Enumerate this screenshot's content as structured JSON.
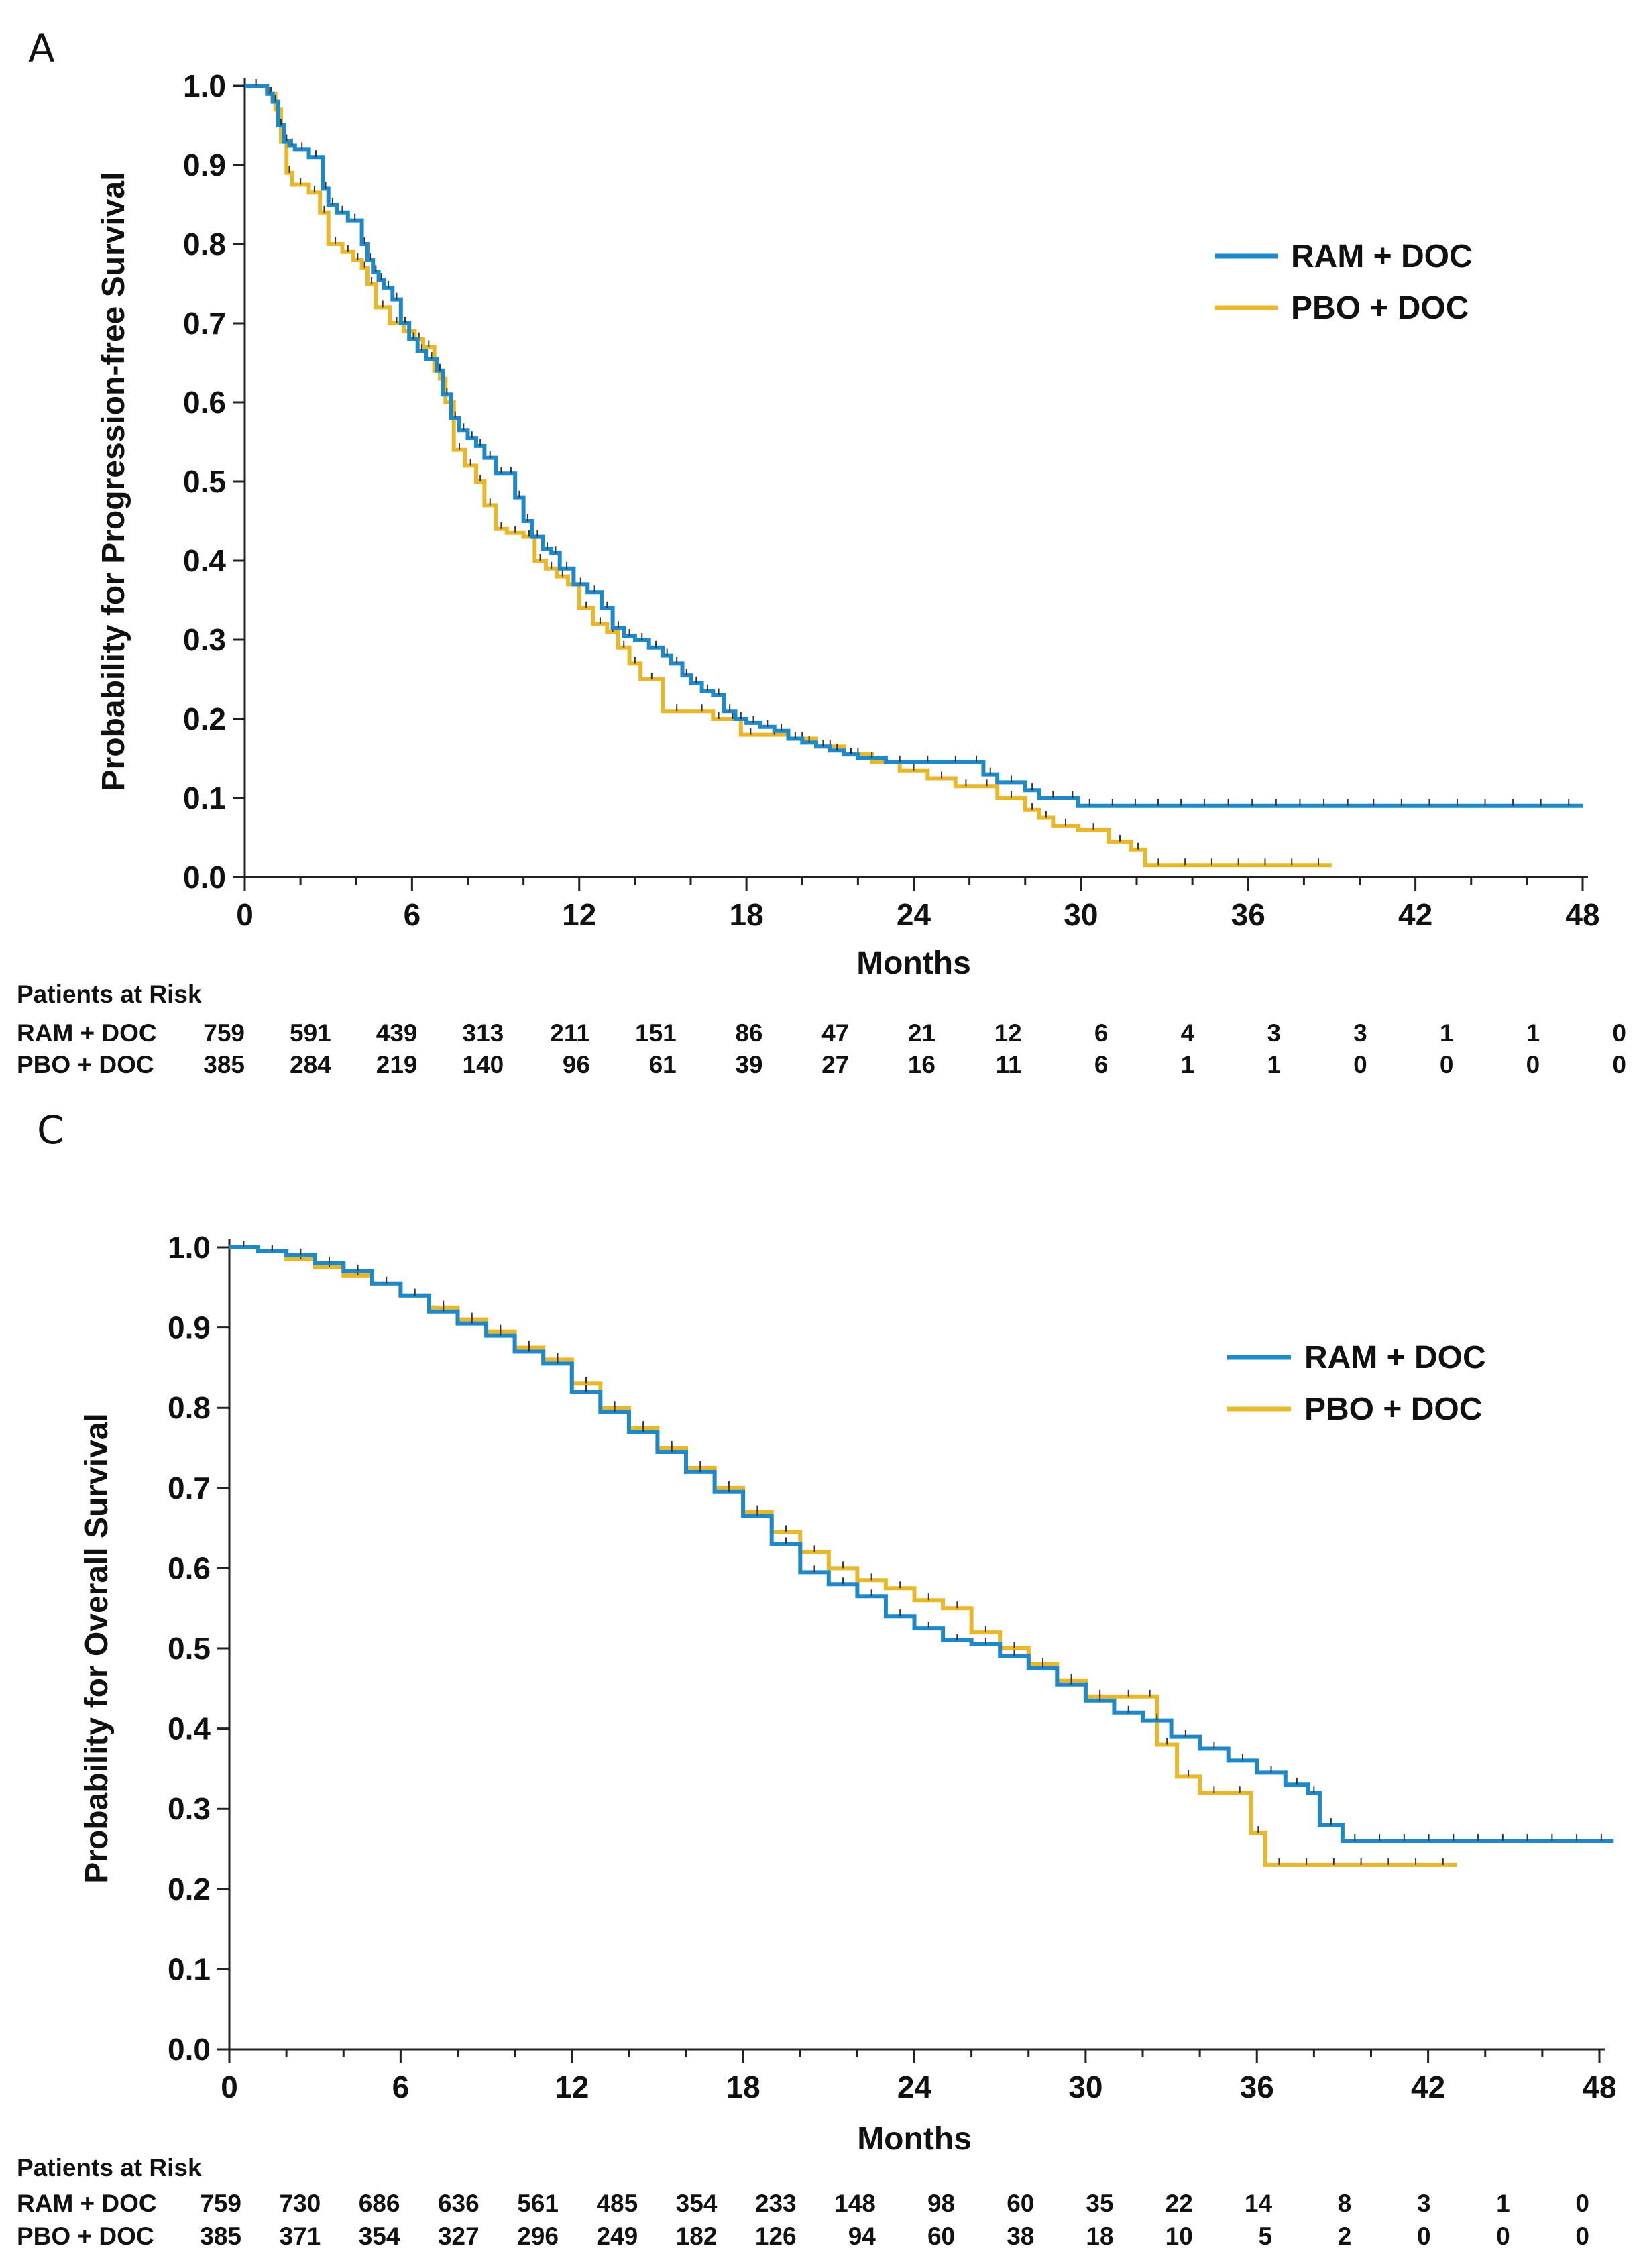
{
  "colors": {
    "ram": "#1e88c8",
    "pbo": "#e8b82a"
  },
  "chart_data": [
    {
      "panel": "A",
      "type": "line",
      "title": "",
      "xlabel": "Months",
      "ylabel": "Probability for Progression-free Survival",
      "xlim": [
        0,
        48
      ],
      "ylim": [
        0,
        1.0
      ],
      "xticks": [
        "0",
        "6",
        "12",
        "18",
        "24",
        "30",
        "36",
        "42",
        "48"
      ],
      "yticks": [
        "0.0",
        "0.1",
        "0.2",
        "0.3",
        "0.4",
        "0.5",
        "0.6",
        "0.7",
        "0.8",
        "0.9",
        "1.0"
      ],
      "legend": [
        "RAM + DOC",
        "PBO + DOC"
      ],
      "series": [
        {
          "name": "RAM + DOC",
          "color": "ram",
          "x": [
            0,
            0.8,
            1.0,
            1.2,
            1.4,
            1.6,
            1.8,
            2.3,
            2.8,
            3.0,
            3.3,
            3.7,
            4.2,
            4.4,
            4.6,
            4.8,
            5.0,
            5.3,
            5.6,
            5.9,
            6.2,
            6.5,
            6.9,
            7.1,
            7.4,
            7.7,
            8.0,
            8.3,
            8.6,
            9.0,
            9.4,
            9.7,
            10.0,
            10.3,
            10.7,
            11.0,
            11.3,
            11.8,
            12.3,
            12.8,
            13.2,
            13.6,
            14.0,
            14.5,
            15.0,
            15.3,
            15.7,
            16.0,
            16.4,
            16.8,
            17.2,
            17.6,
            18.0,
            18.5,
            19.0,
            19.5,
            20.0,
            20.5,
            21.0,
            21.5,
            22.0,
            23.0,
            24.0,
            25.0,
            26.0,
            26.5,
            27.0,
            28.0,
            28.5,
            29.5,
            29.9,
            34.0,
            40.0,
            44.0,
            48.0
          ],
          "y": [
            1.0,
            0.99,
            0.98,
            0.95,
            0.93,
            0.925,
            0.92,
            0.91,
            0.87,
            0.85,
            0.84,
            0.83,
            0.8,
            0.78,
            0.765,
            0.755,
            0.745,
            0.73,
            0.7,
            0.68,
            0.665,
            0.655,
            0.64,
            0.61,
            0.58,
            0.565,
            0.555,
            0.545,
            0.53,
            0.51,
            0.51,
            0.48,
            0.45,
            0.43,
            0.415,
            0.41,
            0.39,
            0.37,
            0.36,
            0.34,
            0.315,
            0.305,
            0.3,
            0.29,
            0.28,
            0.27,
            0.255,
            0.245,
            0.235,
            0.23,
            0.21,
            0.2,
            0.195,
            0.19,
            0.185,
            0.175,
            0.17,
            0.165,
            0.16,
            0.155,
            0.15,
            0.145,
            0.145,
            0.145,
            0.145,
            0.13,
            0.12,
            0.11,
            0.1,
            0.1,
            0.09,
            0.09,
            0.09,
            0.09,
            0.09
          ]
        },
        {
          "name": "PBO + DOC",
          "color": "pbo",
          "x": [
            0,
            0.8,
            1.1,
            1.3,
            1.5,
            1.7,
            2.3,
            2.7,
            3.0,
            3.5,
            3.9,
            4.2,
            4.4,
            4.7,
            5.2,
            5.7,
            6.1,
            6.4,
            6.8,
            7.0,
            7.2,
            7.5,
            7.9,
            8.3,
            8.6,
            9.0,
            9.4,
            10.0,
            10.4,
            10.8,
            11.2,
            11.6,
            12.0,
            12.5,
            13.0,
            13.4,
            13.8,
            14.2,
            15.0,
            16.0,
            16.8,
            17.2,
            17.8,
            18.5,
            19.5,
            20.5,
            21.5,
            22.5,
            23.5,
            24.5,
            25.5,
            27.0,
            28.0,
            28.5,
            29.0,
            29.9,
            31.0,
            31.8,
            32.3,
            39.0
          ],
          "y": [
            1.0,
            0.99,
            0.97,
            0.93,
            0.89,
            0.875,
            0.865,
            0.84,
            0.8,
            0.79,
            0.78,
            0.77,
            0.75,
            0.72,
            0.7,
            0.69,
            0.68,
            0.67,
            0.64,
            0.63,
            0.6,
            0.54,
            0.52,
            0.5,
            0.47,
            0.44,
            0.435,
            0.43,
            0.4,
            0.39,
            0.38,
            0.37,
            0.34,
            0.32,
            0.31,
            0.29,
            0.27,
            0.25,
            0.21,
            0.21,
            0.2,
            0.2,
            0.18,
            0.18,
            0.175,
            0.165,
            0.155,
            0.145,
            0.135,
            0.125,
            0.115,
            0.1,
            0.085,
            0.075,
            0.065,
            0.06,
            0.045,
            0.035,
            0.015,
            0.015
          ]
        }
      ],
      "risk_table": {
        "title": "Patients at Risk",
        "rows": [
          {
            "label": "RAM + DOC",
            "values": [
              "759",
              "591",
              "439",
              "313",
              "211",
              "151",
              "86",
              "47",
              "21",
              "12",
              "6",
              "4",
              "3",
              "3",
              "1",
              "1",
              "0"
            ]
          },
          {
            "label": "PBO + DOC",
            "values": [
              "385",
              "284",
              "219",
              "140",
              "96",
              "61",
              "39",
              "27",
              "16",
              "11",
              "6",
              "1",
              "1",
              "0",
              "0",
              "0",
              "0"
            ]
          }
        ]
      }
    },
    {
      "panel": "C",
      "type": "line",
      "title": "",
      "xlabel": "Months",
      "ylabel": "Probability for Overall Survival",
      "xlim": [
        0,
        48
      ],
      "ylim": [
        0,
        1.0
      ],
      "xticks": [
        "0",
        "6",
        "12",
        "18",
        "24",
        "30",
        "36",
        "42",
        "48"
      ],
      "yticks": [
        "0.0",
        "0.1",
        "0.2",
        "0.3",
        "0.4",
        "0.5",
        "0.6",
        "0.7",
        "0.8",
        "0.9",
        "1.0"
      ],
      "legend": [
        "RAM + DOC",
        "PBO + DOC"
      ],
      "series": [
        {
          "name": "RAM + DOC",
          "color": "ram",
          "x": [
            0,
            1,
            2,
            3,
            4,
            5,
            6,
            7,
            8,
            9,
            10,
            11,
            12,
            13,
            14,
            15,
            16,
            17,
            18,
            19,
            20,
            21,
            22,
            23,
            24,
            25,
            26,
            27,
            28,
            29,
            30,
            31,
            32,
            33,
            34,
            35,
            36,
            37,
            37.8,
            38.2,
            39.0,
            48.5
          ],
          "y": [
            1.0,
            0.995,
            0.99,
            0.98,
            0.97,
            0.955,
            0.94,
            0.92,
            0.905,
            0.89,
            0.87,
            0.855,
            0.82,
            0.795,
            0.77,
            0.745,
            0.72,
            0.695,
            0.665,
            0.63,
            0.595,
            0.58,
            0.565,
            0.54,
            0.525,
            0.51,
            0.505,
            0.49,
            0.475,
            0.455,
            0.435,
            0.42,
            0.41,
            0.39,
            0.375,
            0.36,
            0.345,
            0.33,
            0.32,
            0.28,
            0.26,
            0.26
          ]
        },
        {
          "name": "PBO + DOC",
          "color": "pbo",
          "x": [
            0,
            1,
            2,
            3,
            4,
            5,
            6,
            7,
            8,
            9,
            10,
            11,
            12,
            13,
            14,
            15,
            16,
            17,
            18,
            19,
            20,
            21,
            22,
            23,
            24,
            25,
            26,
            27,
            28,
            29,
            30,
            31,
            32,
            32.5,
            33.2,
            34.0,
            35.0,
            35.8,
            36.3,
            43.0
          ],
          "y": [
            1.0,
            0.995,
            0.985,
            0.975,
            0.965,
            0.955,
            0.94,
            0.925,
            0.91,
            0.895,
            0.875,
            0.86,
            0.83,
            0.8,
            0.775,
            0.75,
            0.725,
            0.7,
            0.67,
            0.645,
            0.62,
            0.6,
            0.585,
            0.575,
            0.56,
            0.55,
            0.52,
            0.5,
            0.48,
            0.46,
            0.44,
            0.44,
            0.44,
            0.38,
            0.34,
            0.32,
            0.32,
            0.27,
            0.23,
            0.23
          ]
        }
      ],
      "risk_table": {
        "title": "Patients at Risk",
        "rows": [
          {
            "label": "RAM + DOC",
            "values": [
              "759",
              "730",
              "686",
              "636",
              "561",
              "485",
              "354",
              "233",
              "148",
              "98",
              "60",
              "35",
              "22",
              "14",
              "8",
              "3",
              "1",
              "0"
            ]
          },
          {
            "label": "PBO + DOC",
            "values": [
              "385",
              "371",
              "354",
              "327",
              "296",
              "249",
              "182",
              "126",
              "94",
              "60",
              "38",
              "18",
              "10",
              "5",
              "2",
              "0",
              "0",
              "0"
            ]
          }
        ]
      }
    }
  ]
}
